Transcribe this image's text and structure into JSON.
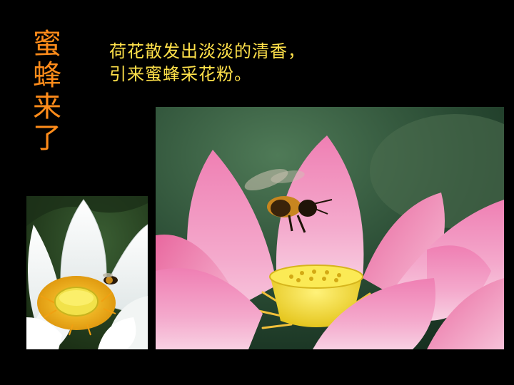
{
  "slide": {
    "vertical_title": [
      "蜜",
      "蜂",
      "来",
      "了"
    ],
    "caption_lines": [
      "荷花散发出淡淡的清香，",
      "引来蜜蜂采花粉。"
    ]
  },
  "colors": {
    "background": "#000000",
    "title": "#ff8c1a",
    "caption": "#ffe14a"
  },
  "images": {
    "left": "white-lotus-with-bee-photo",
    "main": "pink-lotus-with-bee-photo"
  }
}
